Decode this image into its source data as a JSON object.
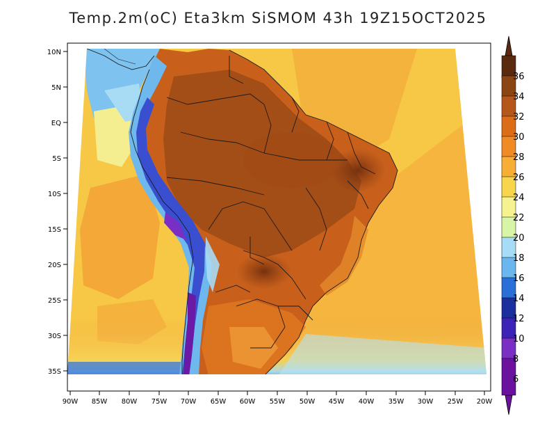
{
  "title": "Temp.2m(oC) Eta3km SiSMOM 43h 19Z15OCT2025",
  "lat_labels": [
    "10N",
    "5N",
    "EQ",
    "5S",
    "10S",
    "15S",
    "20S",
    "25S",
    "30S",
    "35S"
  ],
  "lon_labels": [
    "90W",
    "85W",
    "80W",
    "75W",
    "70W",
    "65W",
    "60W",
    "55W",
    "50W",
    "45W",
    "40W",
    "35W",
    "30W",
    "25W",
    "20W"
  ],
  "colorbar": {
    "labels": [
      "36",
      "34",
      "32",
      "30",
      "28",
      "26",
      "24",
      "22",
      "20",
      "18",
      "16",
      "14",
      "12",
      "10",
      "8",
      "6"
    ],
    "colors": [
      "#5a2a0f",
      "#8b4513",
      "#b5561a",
      "#dc6d18",
      "#f08a24",
      "#f6ae35",
      "#f8d64c",
      "#f5f28f",
      "#d8f4a6",
      "#a7dcf7",
      "#6ab7f0",
      "#2a6fd8",
      "#1b2f9e",
      "#3d22b8",
      "#7a2fc4",
      "#6a119e"
    ]
  }
}
